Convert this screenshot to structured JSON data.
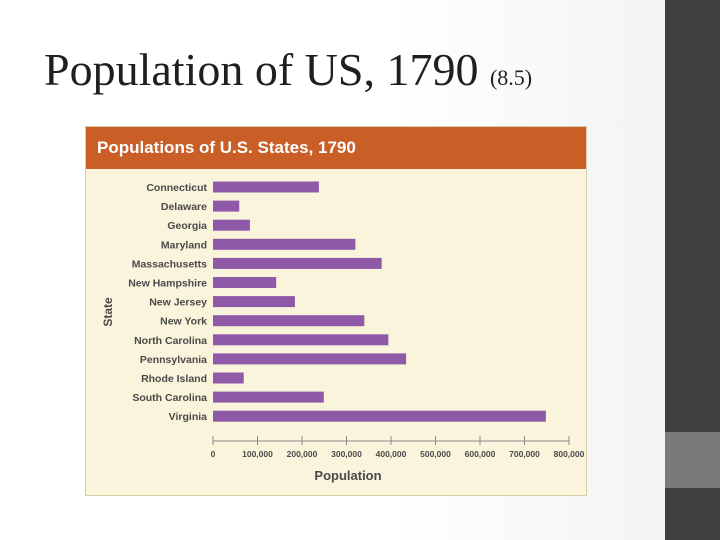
{
  "slide": {
    "title_main": "Population of US, 1790",
    "title_sub": "(8.5)"
  },
  "chart_data": {
    "type": "bar",
    "orientation": "horizontal",
    "title": "Populations of U.S. States, 1790",
    "xlabel": "Population",
    "ylabel": "State",
    "categories": [
      "Connecticut",
      "Delaware",
      "Georgia",
      "Maryland",
      "Massachusetts",
      "New Hampshire",
      "New Jersey",
      "New York",
      "North Carolina",
      "Pennsylvania",
      "Rhode Island",
      "South Carolina",
      "Virginia"
    ],
    "values": [
      238000,
      59000,
      83000,
      320000,
      379000,
      142000,
      184000,
      340000,
      394000,
      434000,
      69000,
      249000,
      748000
    ],
    "xlim": [
      0,
      800000
    ],
    "xticks": [
      0,
      100000,
      200000,
      300000,
      400000,
      500000,
      600000,
      700000,
      800000
    ],
    "xtick_labels": [
      "0",
      "100,000",
      "200,000",
      "300,000",
      "400,000",
      "500,000",
      "600,000",
      "700,000",
      "800,000"
    ],
    "grid": false,
    "colors": {
      "bar": "#8e5aa8",
      "header": "#c95f27",
      "background": "#faf4dc",
      "text": "#4a4a4a"
    }
  }
}
